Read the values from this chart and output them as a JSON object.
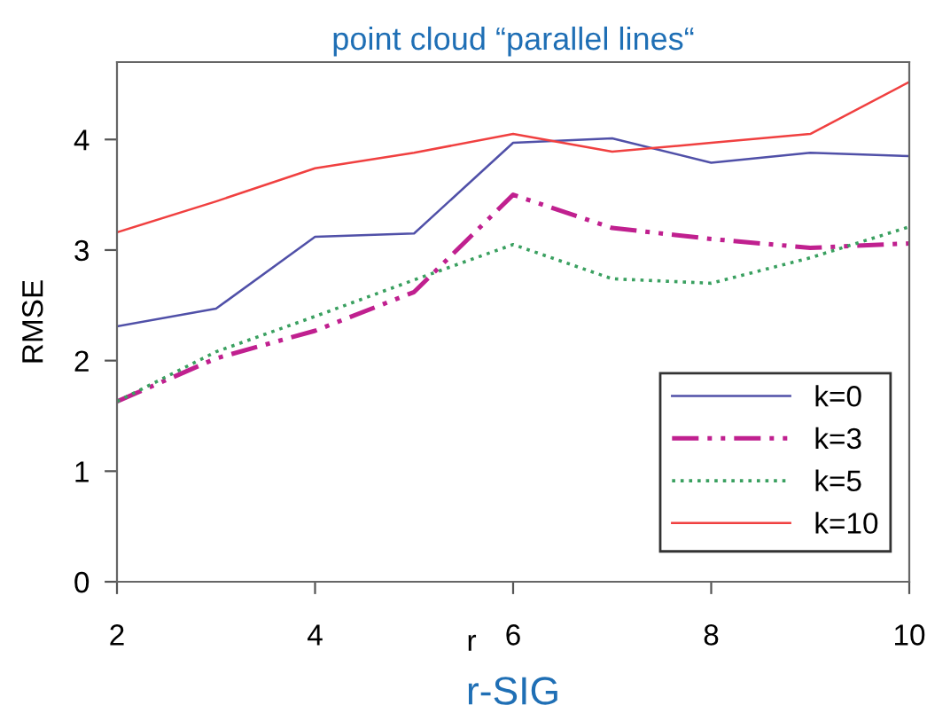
{
  "chart_data": {
    "type": "line",
    "title": "point cloud “parallel lines“",
    "xlabel": "r-SIG",
    "ylabel": "RMSE",
    "x": [
      2,
      3,
      4,
      5,
      6,
      7,
      8,
      9,
      10
    ],
    "series": [
      {
        "name": "k=0",
        "color": "#5050a8",
        "line_style": "solid",
        "values": [
          2.31,
          2.47,
          3.12,
          3.15,
          3.97,
          4.01,
          3.79,
          3.88,
          3.85
        ]
      },
      {
        "name": "k=3",
        "color": "#c0208f",
        "line_style": "dashdot",
        "values": [
          1.63,
          2.02,
          2.27,
          2.62,
          3.5,
          3.2,
          3.1,
          3.02,
          3.06
        ]
      },
      {
        "name": "k=5",
        "color": "#3aa060",
        "line_style": "dotted",
        "values": [
          1.63,
          2.08,
          2.4,
          2.73,
          3.05,
          2.74,
          2.7,
          2.93,
          3.21
        ]
      },
      {
        "name": "k=10",
        "color": "#f04040",
        "line_style": "solid",
        "values": [
          3.16,
          3.44,
          3.74,
          3.88,
          4.05,
          3.89,
          3.97,
          4.05,
          4.52
        ]
      }
    ],
    "xlim": [
      2,
      10
    ],
    "xticks": [
      2,
      4,
      6,
      8,
      10
    ],
    "ylim": [
      0,
      4.7
    ],
    "yticks": [
      0,
      1,
      2,
      3,
      4
    ],
    "annotations": [
      "r"
    ],
    "legend": "bottom right",
    "grid": false,
    "marker": "none"
  }
}
